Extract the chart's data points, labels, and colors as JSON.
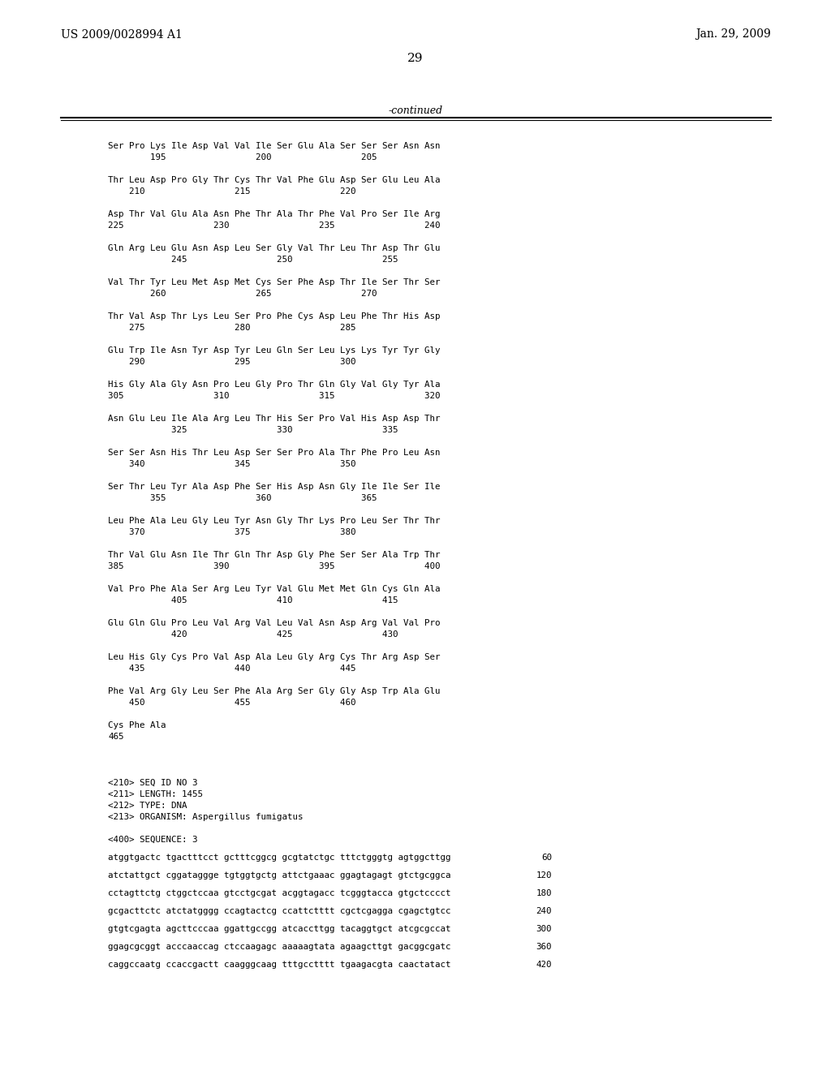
{
  "header_left": "US 2009/0028994 A1",
  "header_right": "Jan. 29, 2009",
  "page_number": "29",
  "continued_label": "-continued",
  "background_color": "#ffffff",
  "text_color": "#000000",
  "protein_lines": [
    [
      "Ser Pro Lys Ile Asp Val Val Ile Ser Glu Ala Ser Ser Ser Asn Asn",
      "        195                 200                 205"
    ],
    [
      "Thr Leu Asp Pro Gly Thr Cys Thr Val Phe Glu Asp Ser Glu Leu Ala",
      "    210                 215                 220"
    ],
    [
      "Asp Thr Val Glu Ala Asn Phe Thr Ala Thr Phe Val Pro Ser Ile Arg",
      "225                 230                 235                 240"
    ],
    [
      "Gln Arg Leu Glu Asn Asp Leu Ser Gly Val Thr Leu Thr Asp Thr Glu",
      "            245                 250                 255"
    ],
    [
      "Val Thr Tyr Leu Met Asp Met Cys Ser Phe Asp Thr Ile Ser Thr Ser",
      "        260                 265                 270"
    ],
    [
      "Thr Val Asp Thr Lys Leu Ser Pro Phe Cys Asp Leu Phe Thr His Asp",
      "    275                 280                 285"
    ],
    [
      "Glu Trp Ile Asn Tyr Asp Tyr Leu Gln Ser Leu Lys Lys Tyr Tyr Gly",
      "    290                 295                 300"
    ],
    [
      "His Gly Ala Gly Asn Pro Leu Gly Pro Thr Gln Gly Val Gly Tyr Ala",
      "305                 310                 315                 320"
    ],
    [
      "Asn Glu Leu Ile Ala Arg Leu Thr His Ser Pro Val His Asp Asp Thr",
      "            325                 330                 335"
    ],
    [
      "Ser Ser Asn His Thr Leu Asp Ser Ser Pro Ala Thr Phe Pro Leu Asn",
      "    340                 345                 350"
    ],
    [
      "Ser Thr Leu Tyr Ala Asp Phe Ser His Asp Asn Gly Ile Ile Ser Ile",
      "        355                 360                 365"
    ],
    [
      "Leu Phe Ala Leu Gly Leu Tyr Asn Gly Thr Lys Pro Leu Ser Thr Thr",
      "    370                 375                 380"
    ],
    [
      "Thr Val Glu Asn Ile Thr Gln Thr Asp Gly Phe Ser Ser Ala Trp Thr",
      "385                 390                 395                 400"
    ],
    [
      "Val Pro Phe Ala Ser Arg Leu Tyr Val Glu Met Met Gln Cys Gln Ala",
      "            405                 410                 415"
    ],
    [
      "Glu Gln Glu Pro Leu Val Arg Val Leu Val Asn Asp Arg Val Val Pro",
      "            420                 425                 430"
    ],
    [
      "Leu His Gly Cys Pro Val Asp Ala Leu Gly Arg Cys Thr Arg Asp Ser",
      "    435                 440                 445"
    ],
    [
      "Phe Val Arg Gly Leu Ser Phe Ala Arg Ser Gly Gly Asp Trp Ala Glu",
      "    450                 455                 460"
    ],
    [
      "Cys Phe Ala",
      "465"
    ]
  ],
  "metadata_lines": [
    "",
    "<210> SEQ ID NO 3",
    "<211> LENGTH: 1455",
    "<212> TYPE: DNA",
    "<213> ORGANISM: Aspergillus fumigatus",
    "",
    "<400> SEQUENCE: 3"
  ],
  "dna_lines": [
    [
      "atggtgactc tgactttcct gctttcggcg gcgtatctgc tttctgggtg agtggcttgg",
      "     60"
    ],
    [
      "atctattgct cggataggge tgtggtgctg attctgaaac ggagtagagt gtctgcggca",
      "    120"
    ],
    [
      "cctagttctg ctggctccaa gtcctgcgat acggtagacc tcgggtacca gtgctcccct",
      "    180"
    ],
    [
      "gcgacttctc atctatgggg ccagtactcg ccattctttt cgctcgagga cgagctgtcc",
      "    240"
    ],
    [
      "gtgtcgagta agcttcccaa ggattgccgg atcaccttgg tacaggtgct atcgcgccat",
      "    300"
    ],
    [
      "ggagcgcggt acccaaccag ctccaagagc aaaaagtata agaagcttgt gacggcgatc",
      "    360"
    ],
    [
      "caggccaatg ccaccgactt caagggcaag tttgcctttt tgaagacgta caactatact",
      "    420"
    ]
  ]
}
